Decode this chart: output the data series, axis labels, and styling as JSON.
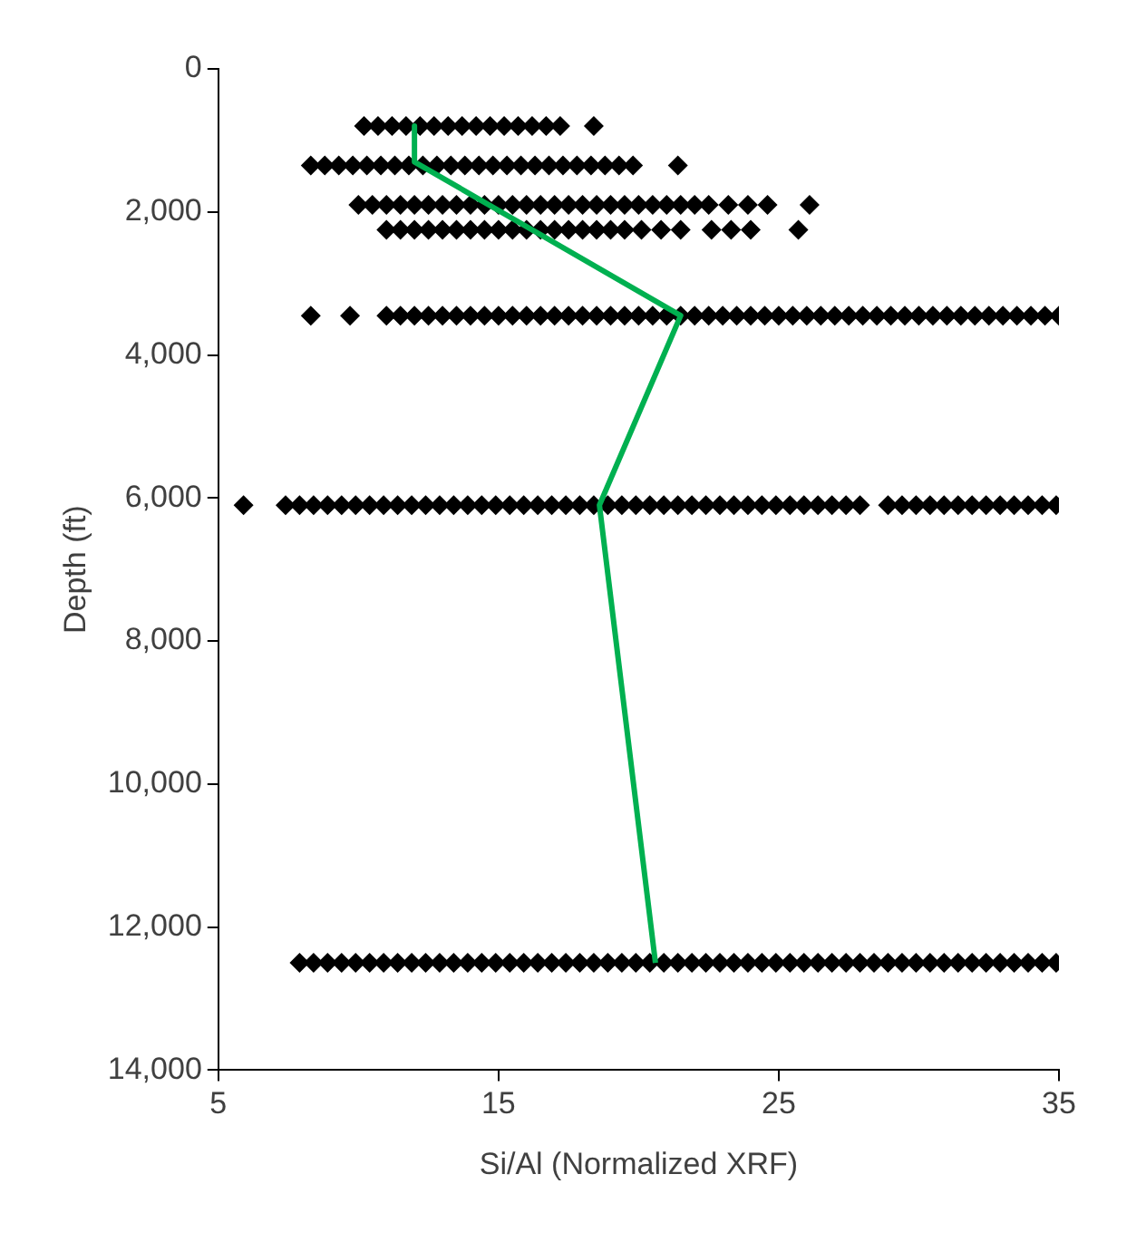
{
  "chart_data": {
    "type": "scatter",
    "xlabel": "Si/Al (Normalized XRF)",
    "ylabel": "Depth (ft)",
    "xlim": [
      5,
      35
    ],
    "xticks": [
      5,
      15,
      25,
      35
    ],
    "ylim": [
      14000,
      0
    ],
    "yticks": [
      0,
      {
        "value": 2000,
        "label": "2,000"
      },
      {
        "value": 4000,
        "label": "4,000"
      },
      {
        "value": 6000,
        "label": "6,000"
      },
      {
        "value": 8000,
        "label": "8,000"
      },
      {
        "value": 10000,
        "label": "10,000"
      },
      {
        "value": 12000,
        "label": "12,000"
      },
      {
        "value": 14000,
        "label": "14,000"
      }
    ],
    "grid": false,
    "legend": false,
    "marker": "diamond",
    "series": [
      {
        "type": "scatter",
        "color": "#000000",
        "x": [
          10.2,
          10.7,
          11.2,
          11.7,
          12.2,
          12.7,
          13.2,
          13.7,
          14.2,
          14.7,
          15.2,
          15.7,
          16.2,
          16.7,
          17.2,
          18.4
        ],
        "values": [
          800,
          800,
          800,
          800,
          800,
          800,
          800,
          800,
          800,
          800,
          800,
          800,
          800,
          800,
          800,
          800
        ]
      },
      {
        "type": "scatter",
        "color": "#000000",
        "x": [
          8.3,
          8.8,
          9.3,
          9.8,
          10.3,
          10.8,
          11.3,
          11.8,
          12.3,
          12.8,
          13.3,
          13.8,
          14.3,
          14.8,
          15.3,
          15.8,
          16.3,
          16.8,
          17.3,
          17.8,
          18.3,
          18.8,
          19.3,
          19.8,
          21.4
        ],
        "values": [
          1350,
          1350,
          1350,
          1350,
          1350,
          1350,
          1350,
          1350,
          1350,
          1350,
          1350,
          1350,
          1350,
          1350,
          1350,
          1350,
          1350,
          1350,
          1350,
          1350,
          1350,
          1350,
          1350,
          1350,
          1350
        ]
      },
      {
        "type": "scatter",
        "color": "#000000",
        "x": [
          10,
          10.5,
          11,
          11.5,
          12,
          12.5,
          13,
          13.5,
          14,
          14.5,
          15,
          15.5,
          16,
          16.5,
          17,
          17.5,
          18,
          18.5,
          19,
          19.5,
          20,
          20.5,
          21,
          21.5,
          22,
          22.5,
          23.2,
          23.9,
          24.6,
          26.1
        ],
        "values": [
          1900,
          1900,
          1900,
          1900,
          1900,
          1900,
          1900,
          1900,
          1900,
          1900,
          1900,
          1900,
          1900,
          1900,
          1900,
          1900,
          1900,
          1900,
          1900,
          1900,
          1900,
          1900,
          1900,
          1900,
          1900,
          1900,
          1900,
          1900,
          1900,
          1900
        ]
      },
      {
        "type": "scatter",
        "color": "#000000",
        "x": [
          11,
          11.5,
          12,
          12.5,
          13,
          13.5,
          14,
          14.5,
          15,
          15.5,
          16,
          16.5,
          17,
          17.5,
          18,
          18.5,
          19,
          19.5,
          20.1,
          20.8,
          21.5,
          22.6,
          23.3,
          24,
          25.7
        ],
        "values": [
          2250,
          2250,
          2250,
          2250,
          2250,
          2250,
          2250,
          2250,
          2250,
          2250,
          2250,
          2250,
          2250,
          2250,
          2250,
          2250,
          2250,
          2250,
          2250,
          2250,
          2250,
          2250,
          2250,
          2250,
          2250
        ]
      },
      {
        "type": "scatter",
        "color": "#000000",
        "x": [
          8.3,
          9.7,
          11,
          11.5,
          12,
          12.5,
          13,
          13.5,
          14,
          14.5,
          15,
          15.5,
          16,
          16.5,
          17,
          17.5,
          18,
          18.5,
          19,
          19.5,
          20,
          20.5,
          21,
          21.5,
          22,
          22.5,
          23,
          23.5,
          24,
          24.5,
          25,
          25.5,
          26,
          26.5,
          27,
          27.5,
          28,
          28.5,
          29,
          29.5,
          30,
          30.5,
          31,
          31.5,
          32,
          32.5,
          33,
          33.5,
          34,
          34.5,
          35
        ],
        "values": [
          3450,
          3450,
          3450,
          3450,
          3450,
          3450,
          3450,
          3450,
          3450,
          3450,
          3450,
          3450,
          3450,
          3450,
          3450,
          3450,
          3450,
          3450,
          3450,
          3450,
          3450,
          3450,
          3450,
          3450,
          3450,
          3450,
          3450,
          3450,
          3450,
          3450,
          3450,
          3450,
          3450,
          3450,
          3450,
          3450,
          3450,
          3450,
          3450,
          3450,
          3450,
          3450,
          3450,
          3450,
          3450,
          3450,
          3450,
          3450,
          3450,
          3450,
          3450
        ]
      },
      {
        "type": "scatter",
        "color": "#000000",
        "x": [
          5.9,
          7.4,
          7.9,
          8.4,
          8.9,
          9.4,
          9.9,
          10.4,
          10.9,
          11.4,
          11.9,
          12.4,
          12.9,
          13.4,
          13.9,
          14.4,
          14.9,
          15.4,
          15.9,
          16.4,
          16.9,
          17.4,
          17.9,
          18.4,
          18.9,
          19.4,
          19.9,
          20.4,
          20.9,
          21.4,
          21.9,
          22.4,
          22.9,
          23.4,
          23.9,
          24.4,
          24.9,
          25.4,
          25.9,
          26.4,
          26.9,
          27.4,
          27.9,
          28.9,
          29.4,
          29.9,
          30.4,
          30.9,
          31.4,
          31.9,
          32.4,
          32.9,
          33.4,
          33.9,
          34.4,
          34.9
        ],
        "values": [
          6100,
          6100,
          6100,
          6100,
          6100,
          6100,
          6100,
          6100,
          6100,
          6100,
          6100,
          6100,
          6100,
          6100,
          6100,
          6100,
          6100,
          6100,
          6100,
          6100,
          6100,
          6100,
          6100,
          6100,
          6100,
          6100,
          6100,
          6100,
          6100,
          6100,
          6100,
          6100,
          6100,
          6100,
          6100,
          6100,
          6100,
          6100,
          6100,
          6100,
          6100,
          6100,
          6100,
          6100,
          6100,
          6100,
          6100,
          6100,
          6100,
          6100,
          6100,
          6100,
          6100,
          6100,
          6100,
          6100
        ]
      },
      {
        "type": "scatter",
        "color": "#000000",
        "x": [
          7.9,
          8.4,
          8.9,
          9.4,
          9.9,
          10.4,
          10.9,
          11.4,
          11.9,
          12.4,
          12.9,
          13.4,
          13.9,
          14.4,
          14.9,
          15.4,
          15.9,
          16.4,
          16.9,
          17.4,
          17.9,
          18.4,
          18.9,
          19.4,
          19.9,
          20.4,
          20.9,
          21.4,
          21.9,
          22.4,
          22.9,
          23.4,
          23.9,
          24.4,
          24.9,
          25.4,
          25.9,
          26.4,
          26.9,
          27.4,
          27.9,
          28.4,
          28.9,
          29.4,
          29.9,
          30.4,
          30.9,
          31.4,
          31.9,
          32.4,
          32.9,
          33.4,
          33.9,
          34.4,
          34.9
        ],
        "values": [
          12500,
          12500,
          12500,
          12500,
          12500,
          12500,
          12500,
          12500,
          12500,
          12500,
          12500,
          12500,
          12500,
          12500,
          12500,
          12500,
          12500,
          12500,
          12500,
          12500,
          12500,
          12500,
          12500,
          12500,
          12500,
          12500,
          12500,
          12500,
          12500,
          12500,
          12500,
          12500,
          12500,
          12500,
          12500,
          12500,
          12500,
          12500,
          12500,
          12500,
          12500,
          12500,
          12500,
          12500,
          12500,
          12500,
          12500,
          12500,
          12500,
          12500,
          12500,
          12500,
          12500,
          12500,
          12500
        ]
      },
      {
        "type": "line",
        "color": "#00b050",
        "marker": "none",
        "x": [
          12,
          12,
          21.5,
          18.6,
          20.6
        ],
        "values": [
          800,
          1300,
          3450,
          6100,
          12500
        ]
      }
    ]
  }
}
